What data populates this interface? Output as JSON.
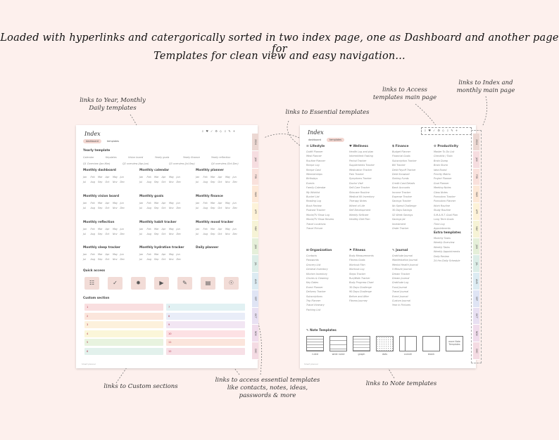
{
  "headline": {
    "line1": "Loaded with hyperlinks and catergorically sorted in two index page, one as Dashboard and another page for",
    "line2": "Templates for clean view and easy navigation..."
  },
  "callouts": {
    "year_monthly": "links to Year, Monthly\nDaily templates",
    "essential": "links to Essential templates",
    "access_templates": "links to Access\ntemplates main page",
    "index_monthly": "links to Index and\nmonthly main page",
    "custom": "links to Custom sections",
    "essential_like": "links to access essential templates\nlike contacts, notes, ideas,\npasswords & more",
    "note": "links to Note templates"
  },
  "left_page": {
    "title": "Index",
    "tabs": [
      "dashboard",
      "templates"
    ],
    "icons": [
      "⇩",
      "♥",
      "✓",
      "⚙",
      "◇",
      "⇩",
      "✎",
      "+"
    ],
    "yearly_title": "Yearly template",
    "yearly_links": [
      "Calendar",
      "Keydates",
      "Vision board",
      "Yearly goals",
      "Yearly finance",
      "Yearly reflection",
      "Q1 Overview (Jan-Mar)",
      "Q2 overview (Apr-Jun)",
      "Q3 overview (Jul-Sep)",
      "Q4 overview (Oct-Dec)"
    ],
    "month_abbr": [
      "Jan",
      "Feb",
      "Mar",
      "Apr",
      "May",
      "Jun",
      "Jul",
      "Aug",
      "Sep",
      "Oct",
      "Nov",
      "Dec"
    ],
    "sections": [
      "Monthly dashboard",
      "Monthly calendar",
      "Monthly planner",
      "Monthly vision board",
      "Monthly goals",
      "Monthly finance",
      "Monthly reflection",
      "Monthly habit tracker",
      "Monthly mood tracker",
      "Monthly sleep tracker",
      "Monthly hydration tracker",
      "Daily planner"
    ],
    "quick_access_title": "Quick access",
    "quick_access_icons": [
      "☷",
      "✓",
      "✹",
      "▶",
      "✎",
      "▤",
      "☉"
    ],
    "custom_title": "Custom section",
    "custom_numbers": [
      "1",
      "7",
      "2",
      "8",
      "3",
      "9",
      "4",
      "10",
      "5",
      "11",
      "6",
      "12"
    ],
    "custom_colors": [
      "#f9dfe0",
      "#e1f1f3",
      "#fbe6dc",
      "#e9edf8",
      "#fdf1dc",
      "#f2e6f3",
      "#fbf6d9",
      "#fde1e4",
      "#e8f3df",
      "#fbe5dc",
      "#e2f1ec",
      "#f7e0e6"
    ],
    "footer": "Smart planner"
  },
  "right_page": {
    "title": "Index",
    "tabs": [
      "dashboard",
      "templates"
    ],
    "icons": [
      "⇩",
      "♥",
      "✓",
      "⚙",
      "◇",
      "⇩",
      "✎",
      "+"
    ],
    "columns": [
      {
        "head": "☰ Lifestyle",
        "items": [
          "Outfit Planner",
          "Meal Planner",
          "Routine Planner",
          "Recipe Log",
          "Recipe Card",
          "Memberships",
          "Birthdays",
          "Events",
          "Family Calendar",
          "My Wishlist",
          "Bucket List",
          "Reading Log",
          "Book Review",
          "Podcast Tracker",
          "Movie/TV Show Log",
          "Movie/TV Show Review",
          "Travel Locations",
          "Travel Picture"
        ]
      },
      {
        "head": "♥ Wellness",
        "items": [
          "Health Log and plan",
          "Intermittent Fasting",
          "Period Tracker",
          "Supplements Tracker",
          "Medication Tracker",
          "Pain Tracker",
          "Symptoms Tracker",
          "Doctor Visit",
          "Self-Care Tracker",
          "Skincare Routine",
          "Medical Kit Inventory",
          "Therapy Notes",
          "Wheel of Life",
          "Self Development",
          "Weekly Selfcare",
          "Healthy Diet Plan"
        ]
      },
      {
        "head": "$ Finance",
        "items": [
          "Budget Planner",
          "Financial Goals",
          "Subscription Tracker",
          "Bill Tracker",
          "Debt Payoff Tracker",
          "Debt Snowball",
          "Sinking Funds",
          "Credit Card Details",
          "Bank Accounts",
          "Income Tracker",
          "Expense Tracker",
          "Savings Tracker",
          "No Spend Challenge",
          "30 Days Savings",
          "52 Week Savings",
          "Savings Jar",
          "Investment",
          "Order Tracker"
        ]
      },
      {
        "head": "⚙ Productivity",
        "items": [
          "Master To Do List",
          "Checklist / Todo",
          "Brain Dump",
          "Brain Storm",
          "Idea Board",
          "Priority Matrix",
          "Project Planner",
          "Goal Planner",
          "Meeting Notes",
          "Class Notes",
          "Pomodoro Tracker",
          "Pomodoro Planner",
          "Work Routine",
          "Study Routine",
          "S.M.A.R.T. Goal Plan",
          "Long Term Goals",
          "Time Log",
          "Appointments"
        ]
      },
      {
        "head": "⊞ Organization",
        "items": [
          "Contacts",
          "Passwords",
          "Grocery List",
          "General Inventory",
          "Kitchen Inventory",
          "Chores & Cleaning",
          "Key Dates",
          "Event Planner",
          "Delivery Tracker",
          "Subscriptions",
          "Trip Planner",
          "Travel Itinerary",
          "Packing List"
        ]
      },
      {
        "head": "⚑ Fitness",
        "items": [
          "Body Measurements",
          "Fitness Goals",
          "Workout Plan",
          "Workout Log",
          "Steps Tracker",
          "Run/Walk Tracker",
          "Body Progress Chart",
          "30 Days Challenge",
          "90 Days Challenge",
          "Before and After",
          "Fitness Journey"
        ]
      },
      {
        "head": "✎ Journal",
        "items": [
          "Gratitude Journal",
          "Manifestation Journal",
          "Mental Health Journal",
          "5 Minute Journal",
          "Dream Tracker",
          "Dream Journal",
          "Gratitude Log",
          "Food Journal",
          "Travel Journal",
          "Event Journal",
          "Custom Journal",
          "Year in Pictures"
        ]
      },
      {
        "head": "Extra templates",
        "items": [
          "Monthly Tasks",
          "Weekly Overview",
          "Weekly Tasks",
          "Weekly Appointments",
          "Daily Review",
          "24 Hrs Daily Schedule"
        ]
      }
    ],
    "note_title": "✎ Note Templates",
    "notes": [
      "ruled",
      "wide ruled",
      "graph",
      "dots",
      "cornell",
      "blank",
      "more Note Templates"
    ],
    "footer": "Smart planner"
  },
  "side_tabs": [
    "2024",
    "JAN",
    "FEB",
    "MAR",
    "APR",
    "MAY",
    "JUN",
    "JUL",
    "AUG",
    "SEP",
    "OCT",
    "NOV",
    "DEC"
  ],
  "side_tab_colors": [
    "#ecd8d3",
    "#f6dde0",
    "#f9e1dc",
    "#fde8d7",
    "#fdf2d8",
    "#f6f3d6",
    "#e5efd9",
    "#dcede7",
    "#dcebf2",
    "#dfe4f4",
    "#e8e0f2",
    "#f0dcec",
    "#f4dbe3"
  ]
}
